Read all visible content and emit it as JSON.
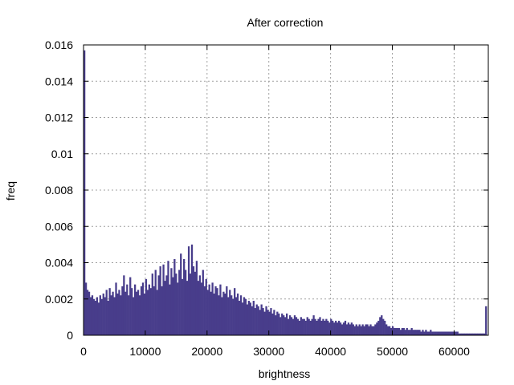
{
  "chart_data": {
    "type": "bar",
    "title": "After correction",
    "xlabel": "brightness",
    "ylabel": "freq",
    "xlim": [
      0,
      65535
    ],
    "ylim": [
      0,
      0.016
    ],
    "xticks": [
      "0",
      "10000",
      "20000",
      "30000",
      "40000",
      "50000",
      "60000"
    ],
    "xtick_values": [
      0,
      10000,
      20000,
      30000,
      40000,
      50000,
      60000
    ],
    "yticks": [
      "0",
      "0.002",
      "0.004",
      "0.006",
      "0.008",
      "0.01",
      "0.012",
      "0.014",
      "0.016"
    ],
    "ytick_values": [
      0,
      0.002,
      0.004,
      0.006,
      0.008,
      0.01,
      0.012,
      0.014,
      0.016
    ],
    "grid": true,
    "bar_color": "#483d8b",
    "bin_width": 256,
    "values": [
      0.0157,
      0.0029,
      0.0025,
      0.0024,
      0.0021,
      0.0022,
      0.002,
      0.0019,
      0.0021,
      0.0018,
      0.0022,
      0.002,
      0.0023,
      0.0021,
      0.0025,
      0.0019,
      0.0026,
      0.0022,
      0.0024,
      0.0021,
      0.0029,
      0.0023,
      0.0025,
      0.0022,
      0.0027,
      0.0033,
      0.0024,
      0.0028,
      0.0022,
      0.0032,
      0.0026,
      0.0021,
      0.0028,
      0.0024,
      0.0025,
      0.0022,
      0.0027,
      0.0029,
      0.0023,
      0.0031,
      0.0025,
      0.0028,
      0.0026,
      0.0034,
      0.0027,
      0.0036,
      0.0025,
      0.0033,
      0.0038,
      0.0027,
      0.0039,
      0.003,
      0.0033,
      0.0041,
      0.0028,
      0.0037,
      0.0032,
      0.0042,
      0.0034,
      0.0029,
      0.0036,
      0.0045,
      0.0031,
      0.0042,
      0.0036,
      0.003,
      0.0049,
      0.0034,
      0.005,
      0.0038,
      0.0035,
      0.0041,
      0.003,
      0.0033,
      0.0029,
      0.0036,
      0.0027,
      0.0031,
      0.0025,
      0.0028,
      0.0024,
      0.0029,
      0.0023,
      0.0027,
      0.0026,
      0.0022,
      0.0028,
      0.0021,
      0.0024,
      0.0023,
      0.0027,
      0.0021,
      0.0025,
      0.0022,
      0.002,
      0.0026,
      0.0021,
      0.0023,
      0.0019,
      0.0022,
      0.0018,
      0.0021,
      0.002,
      0.0017,
      0.0019,
      0.0018,
      0.0016,
      0.0019,
      0.0015,
      0.0017,
      0.0016,
      0.0014,
      0.0017,
      0.0015,
      0.0013,
      0.0016,
      0.0014,
      0.0013,
      0.0015,
      0.0012,
      0.0014,
      0.0011,
      0.0013,
      0.0012,
      0.001,
      0.0012,
      0.0011,
      0.001,
      0.0012,
      0.0009,
      0.0011,
      0.001,
      0.0009,
      0.0011,
      0.001,
      0.0009,
      0.0008,
      0.001,
      0.0009,
      0.0009,
      0.0008,
      0.001,
      0.0009,
      0.0008,
      0.0009,
      0.0011,
      0.0009,
      0.0008,
      0.0009,
      0.001,
      0.0008,
      0.0009,
      0.0008,
      0.0009,
      0.0008,
      0.0007,
      0.0009,
      0.0008,
      0.0007,
      0.0008,
      0.0007,
      0.0008,
      0.0007,
      0.0006,
      0.0007,
      0.0008,
      0.0006,
      0.0007,
      0.0006,
      0.0007,
      0.0006,
      0.0005,
      0.0006,
      0.0005,
      0.0006,
      0.0005,
      0.0006,
      0.0005,
      0.0006,
      0.0006,
      0.0005,
      0.0006,
      0.0005,
      0.0005,
      0.0006,
      0.0007,
      0.0008,
      0.001,
      0.0011,
      0.0009,
      0.0008,
      0.0006,
      0.0005,
      0.0005,
      0.0004,
      0.0005,
      0.0004,
      0.0004,
      0.0004,
      0.0004,
      0.0003,
      0.0004,
      0.0004,
      0.0003,
      0.0004,
      0.0003,
      0.0003,
      0.0004,
      0.0003,
      0.0003,
      0.0003,
      0.0003,
      0.0003,
      0.0002,
      0.0003,
      0.0002,
      0.0003,
      0.0002,
      0.0002,
      0.0003,
      0.0002,
      0.0002,
      0.0002,
      0.0002,
      0.0002,
      0.0002,
      0.0002,
      0.0002,
      0.0002,
      0.0002,
      0.0002,
      0.0002,
      0.0002,
      0.0002,
      0.0002,
      0.0002,
      0.0002,
      0.0001,
      0.0001,
      0.0001,
      0.0001,
      0.0001,
      0.0001,
      0.0001,
      0.0001,
      0.0001,
      0.0001,
      0.0001,
      0.0001,
      0.0001,
      0.0001,
      0.0001,
      0.0001,
      0.0001,
      0.0016
    ]
  }
}
